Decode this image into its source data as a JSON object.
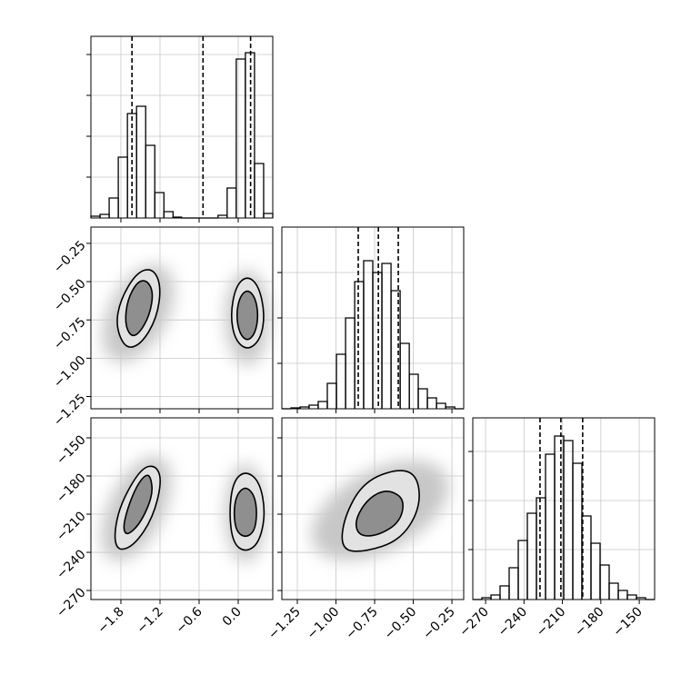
{
  "chart_data": [
    {
      "type": "histogram",
      "xlim": [
        -2.26,
        0.53
      ],
      "xticks": [
        -1.8,
        -1.2,
        -0.6,
        0
      ],
      "ylim": [
        0,
        200
      ],
      "yticks": [
        45,
        90,
        135,
        180
      ],
      "grid": true,
      "color": "#000000",
      "bins": [
        -2.26,
        -2.12,
        -1.98,
        -1.84,
        -1.7,
        -1.56,
        -1.42,
        -1.28,
        -1.14,
        -1.0,
        -0.87,
        -0.73,
        -0.59,
        -0.45,
        -0.31,
        -0.17,
        -0.03,
        0.11,
        0.25,
        0.39,
        0.53
      ],
      "counts": [
        2,
        4,
        22,
        67,
        115,
        123,
        80,
        28,
        7,
        1,
        0,
        0,
        0,
        0,
        3,
        33,
        175,
        182,
        60,
        5
      ],
      "quantiles": [
        -1.63,
        -0.54,
        0.19
      ]
    },
    {
      "type": "contour",
      "xlim": [
        -2.26,
        0.53
      ],
      "xticks": [
        -1.8,
        -1.2,
        -0.6,
        0
      ],
      "ylim": [
        -1.33,
        -0.144
      ],
      "yticks": [
        {
          "value": -0.25,
          "label": "−0.25"
        },
        {
          "value": -0.5,
          "label": "−0.50"
        },
        {
          "value": -0.75,
          "label": "−0.75"
        },
        {
          "value": -1.0,
          "label": "−1.00"
        },
        {
          "value": -1.25,
          "label": "−1.25"
        }
      ],
      "grid": true,
      "contours": [
        {
          "x": [
            -1.31,
            -1.18,
            -1.25,
            -1.49,
            -1.73,
            -1.88,
            -1.81,
            -1.56
          ],
          "y": [
            -0.41,
            -0.53,
            -0.74,
            -0.91,
            -0.94,
            -0.79,
            -0.62,
            -0.44
          ]
        },
        {
          "x": [
            -1.4,
            -1.3,
            -1.36,
            -1.52,
            -1.65,
            -1.74,
            -1.7,
            -1.55
          ],
          "y": [
            -0.49,
            -0.57,
            -0.72,
            -0.84,
            -0.86,
            -0.77,
            -0.62,
            -0.5
          ]
        },
        {
          "x": [
            0.14,
            0.32,
            0.41,
            0.34,
            0.14,
            -0.05,
            -0.12,
            -0.04
          ],
          "y": [
            -0.46,
            -0.53,
            -0.72,
            -0.88,
            -0.95,
            -0.88,
            -0.72,
            -0.53
          ]
        },
        {
          "x": [
            0.14,
            0.26,
            0.31,
            0.26,
            0.14,
            0.02,
            -0.03,
            0.02
          ],
          "y": [
            -0.55,
            -0.6,
            -0.72,
            -0.84,
            -0.89,
            -0.84,
            -0.72,
            -0.6
          ]
        }
      ]
    },
    {
      "type": "histogram",
      "xlim": [
        -1.35,
        -0.174
      ],
      "xticks": [
        -1.25,
        -1.0,
        -0.75,
        -0.5,
        -0.25
      ],
      "ylim": [
        0,
        200
      ],
      "yticks": [
        50,
        100,
        150
      ],
      "grid": true,
      "color": "#000000",
      "bins": [
        -1.35,
        -1.291,
        -1.232,
        -1.174,
        -1.115,
        -1.056,
        -0.997,
        -0.938,
        -0.879,
        -0.821,
        -0.762,
        -0.703,
        -0.644,
        -0.585,
        -0.526,
        -0.468,
        -0.409,
        -0.35,
        -0.291,
        -0.232,
        -0.174
      ],
      "counts": [
        0,
        1,
        2,
        4,
        8,
        28,
        60,
        100,
        140,
        163,
        150,
        160,
        130,
        72,
        38,
        22,
        12,
        6,
        2,
        0
      ],
      "quantiles": [
        -0.856,
        -0.726,
        -0.597
      ]
    },
    {
      "type": "contour",
      "xlim": [
        -2.26,
        0.53
      ],
      "xticks": [
        {
          "value": -1.8,
          "label": "−1.8"
        },
        {
          "value": -1.2,
          "label": "−1.2"
        },
        {
          "value": -0.6,
          "label": "−0.6"
        },
        {
          "value": 0,
          "label": "0.0"
        }
      ],
      "ylim": [
        -277.1,
        -134.3
      ],
      "yticks": [
        {
          "value": -150,
          "label": "−150"
        },
        {
          "value": -180,
          "label": "−180"
        },
        {
          "value": -210,
          "label": "−210"
        },
        {
          "value": -240,
          "label": "−240"
        },
        {
          "value": -270,
          "label": "−270"
        }
      ],
      "grid": true,
      "contours": [
        {
          "x": [
            -1.26,
            -1.17,
            -1.31,
            -1.59,
            -1.84,
            -1.91,
            -1.81,
            -1.49
          ],
          "y": [
            -171.4,
            -184.3,
            -212.9,
            -234.3,
            -239.3,
            -227.1,
            -202.1,
            -173.6
          ]
        },
        {
          "x": [
            -1.34,
            -1.31,
            -1.49,
            -1.7,
            -1.77,
            -1.7,
            -1.56,
            -1.42
          ],
          "y": [
            -180.7,
            -195.0,
            -216.4,
            -227.1,
            -221.4,
            -205.7,
            -187.9,
            -178.6
          ]
        },
        {
          "x": [
            0.11,
            0.33,
            0.42,
            0.32,
            0.11,
            -0.08,
            -0.14,
            -0.08
          ],
          "y": [
            -175.7,
            -184.3,
            -209.3,
            -232.9,
            -240.0,
            -232.9,
            -209.3,
            -184.3
          ]
        },
        {
          "x": [
            0.11,
            0.25,
            0.29,
            0.25,
            0.11,
            -0.03,
            -0.07,
            -0.03
          ],
          "y": [
            -187.9,
            -195.0,
            -209.3,
            -223.6,
            -228.6,
            -223.6,
            -209.3,
            -195.0
          ]
        }
      ]
    },
    {
      "type": "contour",
      "xlim": [
        -1.35,
        -0.174
      ],
      "xticks": [
        {
          "value": -1.25,
          "label": "−1.25"
        },
        {
          "value": -1.0,
          "label": "−1.00"
        },
        {
          "value": -0.75,
          "label": "−0.75"
        },
        {
          "value": -0.5,
          "label": "−0.50"
        },
        {
          "value": -0.25,
          "label": "−0.25"
        }
      ],
      "ylim": [
        -277.1,
        -134.3
      ],
      "yticks": [
        -150,
        -180,
        -210,
        -240,
        -270
      ],
      "grid": true,
      "contours": [
        {
          "x": [
            -0.585,
            -0.468,
            -0.456,
            -0.585,
            -0.821,
            -0.968,
            -0.95,
            -0.821
          ],
          "y": [
            -173.6,
            -180.7,
            -205.7,
            -230.7,
            -240.0,
            -237.9,
            -212.9,
            -184.3
          ]
        },
        {
          "x": [
            -0.644,
            -0.556,
            -0.585,
            -0.732,
            -0.85,
            -0.879,
            -0.821,
            -0.732
          ],
          "y": [
            -191.4,
            -198.6,
            -216.4,
            -227.1,
            -227.1,
            -216.4,
            -202.1,
            -192.9
          ]
        }
      ]
    },
    {
      "type": "histogram",
      "xlim": [
        -280,
        -138
      ],
      "xticks": [
        {
          "value": -270,
          "label": "−270"
        },
        {
          "value": -240,
          "label": "−240"
        },
        {
          "value": -210,
          "label": "−210"
        },
        {
          "value": -180,
          "label": "−180"
        },
        {
          "value": -150,
          "label": "−150"
        }
      ],
      "ylim": [
        0,
        200
      ],
      "yticks": [
        55,
        109,
        163
      ],
      "grid": true,
      "color": "#000000",
      "bins": [
        -280,
        -272.9,
        -265.8,
        -258.7,
        -251.6,
        -244.5,
        -237.4,
        -230.3,
        -223.2,
        -216.1,
        -209,
        -201.9,
        -194.8,
        -187.7,
        -180.6,
        -173.5,
        -166.4,
        -159.3,
        -152.2,
        -145.1,
        -138
      ],
      "counts": [
        0,
        2,
        5,
        15,
        35,
        65,
        95,
        112,
        160,
        180,
        175,
        150,
        92,
        62,
        38,
        18,
        10,
        5,
        2,
        0
      ],
      "quantiles": [
        -227.5,
        -211.2,
        -194.2
      ]
    }
  ]
}
